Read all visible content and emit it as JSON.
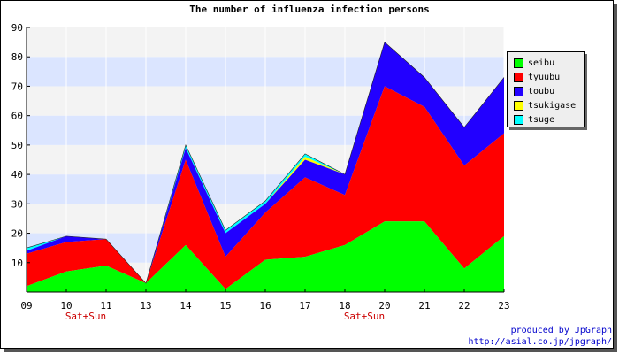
{
  "chart_data": {
    "type": "area",
    "stacked": true,
    "title": "The number of influenza infection persons",
    "categories": [
      "09",
      "10",
      "11",
      "13",
      "14",
      "15",
      "16",
      "17",
      "18",
      "20",
      "21",
      "22",
      "23"
    ],
    "weekend_labels": [
      {
        "category": "10",
        "text": "Sat+Sun"
      },
      {
        "category": "18",
        "text": "Sat+Sun"
      }
    ],
    "ylim": [
      0,
      90
    ],
    "yticks": [
      10,
      20,
      30,
      40,
      50,
      60,
      70,
      80,
      90
    ],
    "grid": true,
    "legend_position": "right",
    "series": [
      {
        "name": "seibu",
        "color": "#00ff00",
        "values": [
          2,
          7,
          9,
          3,
          16,
          1,
          11,
          12,
          16,
          24,
          24,
          8,
          19
        ]
      },
      {
        "name": "tyuubu",
        "color": "#ff0000",
        "values": [
          11,
          10,
          9,
          0,
          29,
          11,
          16,
          27,
          17,
          46,
          39,
          35,
          35
        ]
      },
      {
        "name": "toubu",
        "color": "#2200ff",
        "values": [
          1,
          2,
          0,
          0,
          4,
          8,
          3,
          6,
          7,
          15,
          10,
          13,
          19
        ]
      },
      {
        "name": "tsukigase",
        "color": "#ffff00",
        "values": [
          0,
          0,
          0,
          0,
          0,
          0,
          0,
          1,
          0,
          0,
          0,
          0,
          0
        ]
      },
      {
        "name": "tsuge",
        "color": "#00ffff",
        "values": [
          1,
          0,
          0,
          0,
          1,
          1,
          1,
          1,
          0,
          0,
          0,
          0,
          0
        ]
      }
    ]
  },
  "footer": {
    "produced_by": "produced by JpGraph",
    "url": "http://asial.co.jp/jpgraph/"
  }
}
